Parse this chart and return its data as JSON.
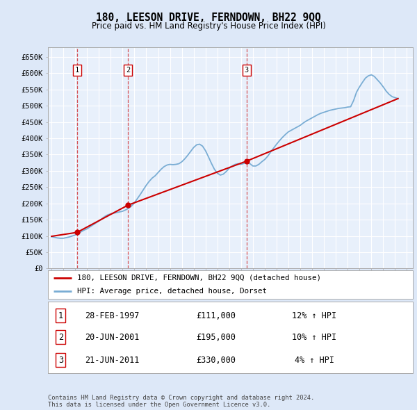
{
  "title": "180, LEESON DRIVE, FERNDOWN, BH22 9QQ",
  "subtitle": "Price paid vs. HM Land Registry's House Price Index (HPI)",
  "bg_color": "#dde8f8",
  "plot_bg_color": "#e8f0fb",
  "grid_color": "#ffffff",
  "sale_color": "#cc0000",
  "hpi_color": "#7aadd4",
  "dashed_color": "#cc0000",
  "ylim": [
    0,
    680000
  ],
  "yticks": [
    0,
    50000,
    100000,
    150000,
    200000,
    250000,
    300000,
    350000,
    400000,
    450000,
    500000,
    550000,
    600000,
    650000
  ],
  "sales": [
    {
      "year": 1997.15,
      "price": 111000,
      "label": "1"
    },
    {
      "year": 2001.47,
      "price": 195000,
      "label": "2"
    },
    {
      "year": 2011.47,
      "price": 330000,
      "label": "3"
    }
  ],
  "legend_sale_label": "180, LEESON DRIVE, FERNDOWN, BH22 9QQ (detached house)",
  "legend_hpi_label": "HPI: Average price, detached house, Dorset",
  "table_rows": [
    {
      "num": "1",
      "date": "28-FEB-1997",
      "price": "£111,000",
      "change": "12% ↑ HPI"
    },
    {
      "num": "2",
      "date": "20-JUN-2001",
      "price": "£195,000",
      "change": "10% ↑ HPI"
    },
    {
      "num": "3",
      "date": "21-JUN-2011",
      "price": "£330,000",
      "change": "4% ↑ HPI"
    }
  ],
  "footnote": "Contains HM Land Registry data © Crown copyright and database right 2024.\nThis data is licensed under the Open Government Licence v3.0.",
  "hpi_data_x": [
    1995.0,
    1995.25,
    1995.5,
    1995.75,
    1996.0,
    1996.25,
    1996.5,
    1996.75,
    1997.0,
    1997.25,
    1997.5,
    1997.75,
    1998.0,
    1998.25,
    1998.5,
    1998.75,
    1999.0,
    1999.25,
    1999.5,
    1999.75,
    2000.0,
    2000.25,
    2000.5,
    2000.75,
    2001.0,
    2001.25,
    2001.5,
    2001.75,
    2002.0,
    2002.25,
    2002.5,
    2002.75,
    2003.0,
    2003.25,
    2003.5,
    2003.75,
    2004.0,
    2004.25,
    2004.5,
    2004.75,
    2005.0,
    2005.25,
    2005.5,
    2005.75,
    2006.0,
    2006.25,
    2006.5,
    2006.75,
    2007.0,
    2007.25,
    2007.5,
    2007.75,
    2008.0,
    2008.25,
    2008.5,
    2008.75,
    2009.0,
    2009.25,
    2009.5,
    2009.75,
    2010.0,
    2010.25,
    2010.5,
    2010.75,
    2011.0,
    2011.25,
    2011.5,
    2011.75,
    2012.0,
    2012.25,
    2012.5,
    2012.75,
    2013.0,
    2013.25,
    2013.5,
    2013.75,
    2014.0,
    2014.25,
    2014.5,
    2014.75,
    2015.0,
    2015.25,
    2015.5,
    2015.75,
    2016.0,
    2016.25,
    2016.5,
    2016.75,
    2017.0,
    2017.25,
    2017.5,
    2017.75,
    2018.0,
    2018.25,
    2018.5,
    2018.75,
    2019.0,
    2019.25,
    2019.5,
    2019.75,
    2020.0,
    2020.25,
    2020.5,
    2020.75,
    2021.0,
    2021.25,
    2021.5,
    2021.75,
    2022.0,
    2022.25,
    2022.5,
    2022.75,
    2023.0,
    2023.25,
    2023.5,
    2023.75,
    2024.0,
    2024.25
  ],
  "hpi_data_y": [
    98000,
    96000,
    94000,
    93000,
    93000,
    95000,
    97000,
    100000,
    103000,
    108000,
    113000,
    118000,
    122000,
    128000,
    134000,
    140000,
    146000,
    153000,
    160000,
    165000,
    168000,
    170000,
    172000,
    174000,
    176000,
    180000,
    185000,
    192000,
    202000,
    215000,
    228000,
    242000,
    256000,
    268000,
    278000,
    285000,
    295000,
    305000,
    313000,
    318000,
    320000,
    319000,
    320000,
    322000,
    328000,
    337000,
    348000,
    360000,
    372000,
    380000,
    382000,
    376000,
    362000,
    343000,
    323000,
    305000,
    293000,
    287000,
    290000,
    298000,
    308000,
    315000,
    320000,
    322000,
    320000,
    323000,
    325000,
    322000,
    315000,
    315000,
    320000,
    328000,
    335000,
    345000,
    358000,
    370000,
    382000,
    393000,
    403000,
    412000,
    420000,
    425000,
    430000,
    435000,
    440000,
    447000,
    453000,
    458000,
    463000,
    468000,
    473000,
    477000,
    480000,
    483000,
    486000,
    488000,
    490000,
    492000,
    493000,
    494000,
    496000,
    497000,
    516000,
    542000,
    558000,
    572000,
    585000,
    592000,
    595000,
    590000,
    580000,
    570000,
    558000,
    545000,
    535000,
    528000,
    525000,
    522000
  ],
  "sale_line_x": [
    1995.0,
    1997.15,
    2001.47,
    2011.47,
    2024.25
  ],
  "sale_line_y": [
    99000,
    111000,
    195000,
    330000,
    522000
  ]
}
